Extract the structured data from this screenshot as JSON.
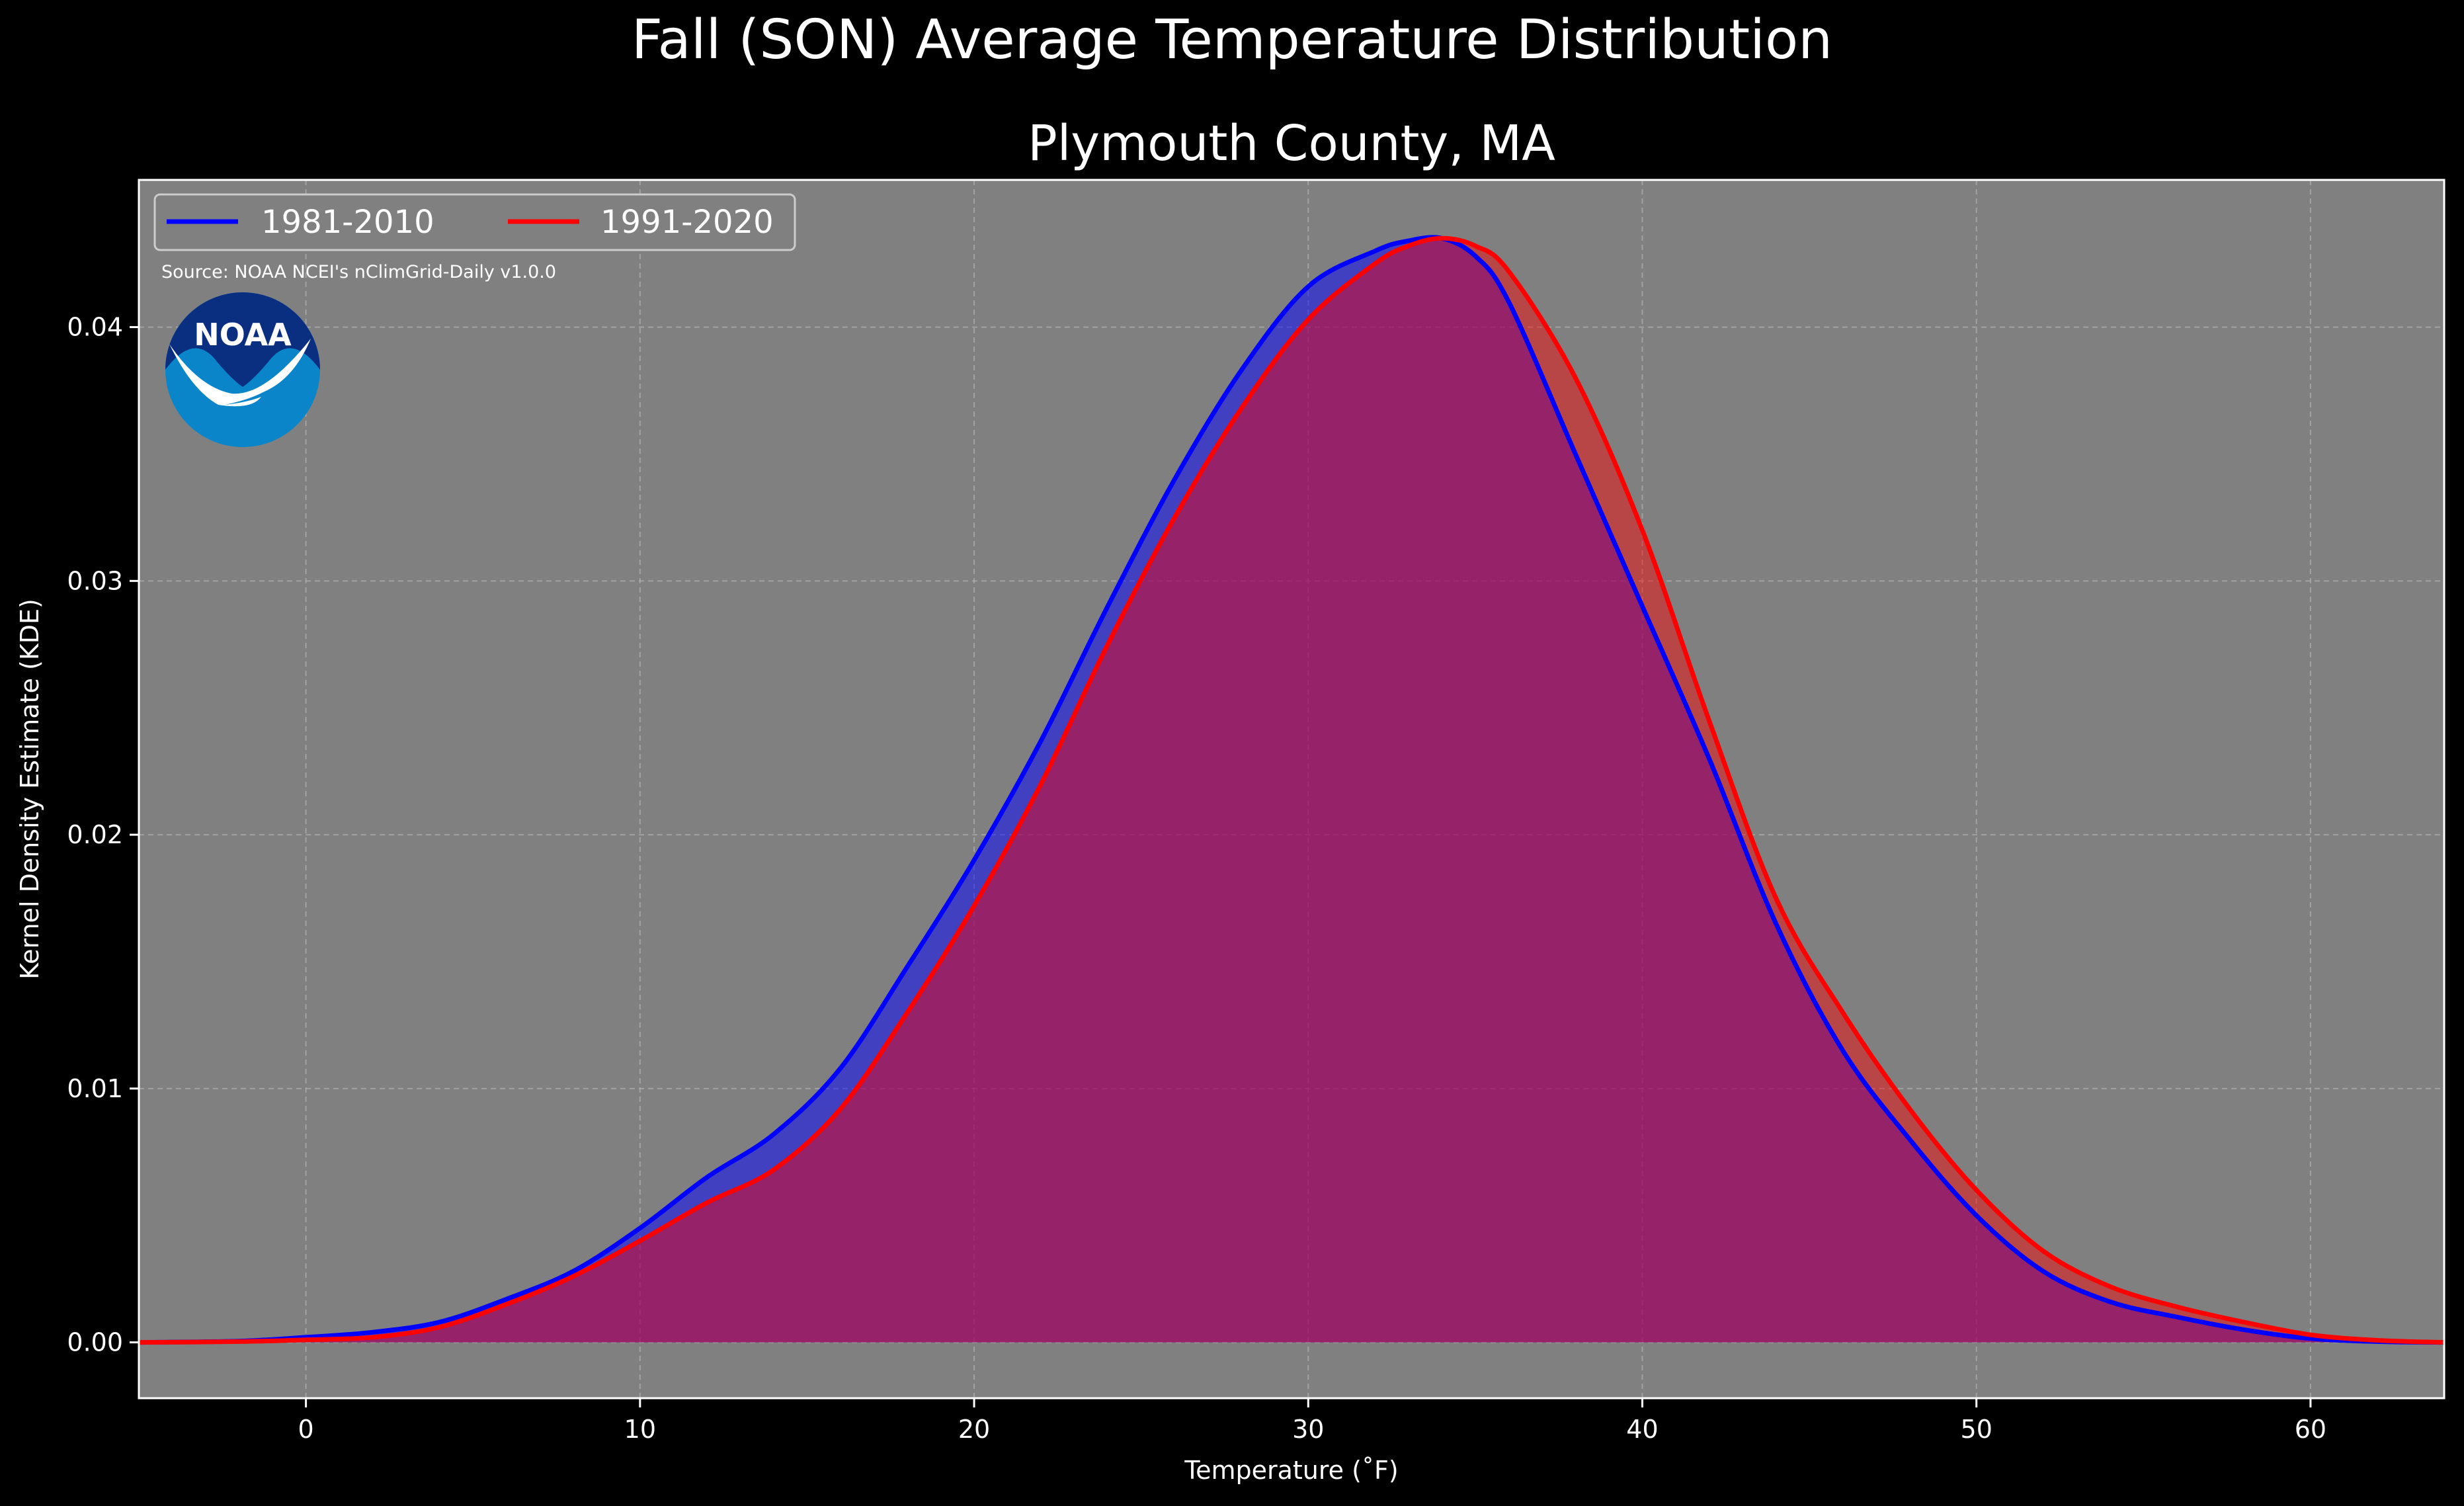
{
  "chart_data": {
    "type": "area",
    "title": "Fall (SON) Average Temperature Distribution",
    "subtitle": "Plymouth County, MA",
    "xlabel": "Temperature (˚F)",
    "ylabel": "Kernel Density Estimate (KDE)",
    "xlim": [
      -5,
      64
    ],
    "ylim": [
      -0.0022,
      0.0458
    ],
    "xticks": [
      0,
      10,
      20,
      30,
      40,
      50,
      60
    ],
    "yticks": [
      0.0,
      0.01,
      0.02,
      0.03,
      0.04
    ],
    "ytick_labels": [
      "0.00",
      "0.01",
      "0.02",
      "0.03",
      "0.04"
    ],
    "grid": true,
    "legend_position": "top-left",
    "source_note": "Source: NOAA NCEI's nClimGrid-Daily v1.0.0",
    "logo_text": "NOAA",
    "background_color": "#808080",
    "figure_color": "#000000",
    "series": [
      {
        "name": "1981-2010",
        "color": "#0000ff",
        "fill": "rgba(0,0,255,0.5)",
        "x": [
          -5,
          -2,
          0,
          2,
          4,
          6,
          8,
          10,
          12,
          14,
          16,
          18,
          20,
          22,
          24,
          26,
          28,
          30,
          32,
          33,
          34,
          35,
          36,
          38,
          40,
          42,
          44,
          46,
          48,
          50,
          52,
          54,
          56,
          58,
          60,
          62,
          64
        ],
        "values": [
          0.0,
          5e-05,
          0.0002,
          0.0004,
          0.0008,
          0.0017,
          0.0028,
          0.0045,
          0.0065,
          0.0082,
          0.0108,
          0.0148,
          0.019,
          0.0237,
          0.029,
          0.034,
          0.0383,
          0.0416,
          0.043,
          0.0434,
          0.0435,
          0.0428,
          0.041,
          0.035,
          0.029,
          0.023,
          0.0165,
          0.0115,
          0.008,
          0.005,
          0.0028,
          0.0016,
          0.001,
          0.0005,
          0.00015,
          3e-05,
          0.0
        ]
      },
      {
        "name": "1991-2020",
        "color": "#ff0000",
        "fill": "rgba(255,0,0,0.45)",
        "x": [
          -5,
          -2,
          0,
          2,
          4,
          6,
          8,
          10,
          12,
          14,
          16,
          18,
          20,
          22,
          24,
          26,
          28,
          30,
          32,
          33,
          34,
          35,
          36,
          38,
          40,
          42,
          44,
          46,
          48,
          50,
          52,
          54,
          56,
          58,
          60,
          62,
          64
        ],
        "values": [
          0.0,
          3e-05,
          0.0001,
          0.0002,
          0.0006,
          0.0015,
          0.0026,
          0.004,
          0.0055,
          0.0068,
          0.0092,
          0.013,
          0.0172,
          0.022,
          0.0275,
          0.0325,
          0.0368,
          0.0403,
          0.0425,
          0.0432,
          0.0435,
          0.0432,
          0.0422,
          0.038,
          0.032,
          0.0245,
          0.0175,
          0.013,
          0.0092,
          0.006,
          0.0036,
          0.0022,
          0.0014,
          0.0008,
          0.0003,
          8e-05,
          0.0
        ]
      }
    ]
  }
}
